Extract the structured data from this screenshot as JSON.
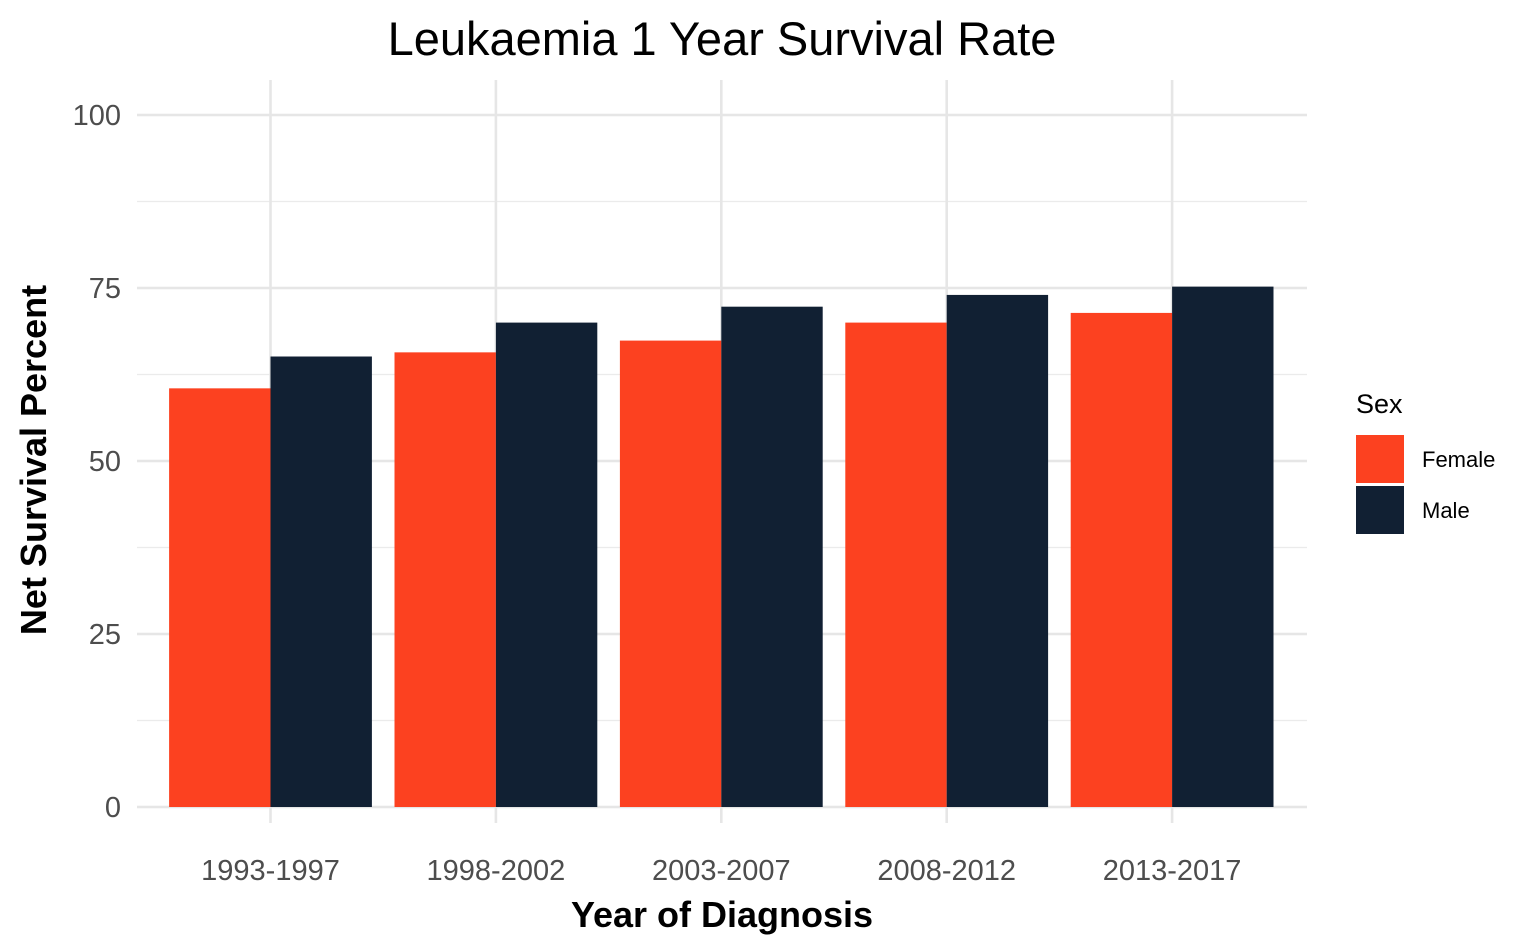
{
  "chart_data": {
    "type": "bar",
    "title": "Leukaemia 1 Year Survival Rate",
    "xlabel": "Year of Diagnosis",
    "ylabel": "Net Survival Percent",
    "categories": [
      "1993-1997",
      "1998-2002",
      "2003-2007",
      "2008-2012",
      "2013-2017"
    ],
    "series": [
      {
        "name": "Female",
        "color": "#fc4120",
        "values": [
          60.5,
          65.7,
          67.4,
          70.0,
          71.4
        ]
      },
      {
        "name": "Male",
        "color": "#112033",
        "values": [
          65.1,
          70.0,
          72.3,
          74.0,
          75.2
        ]
      }
    ],
    "ylim": [
      0,
      100
    ],
    "yticks": [
      0,
      25,
      50,
      75,
      100
    ],
    "legend": {
      "title": "Sex",
      "position": "right"
    },
    "grid": true
  }
}
